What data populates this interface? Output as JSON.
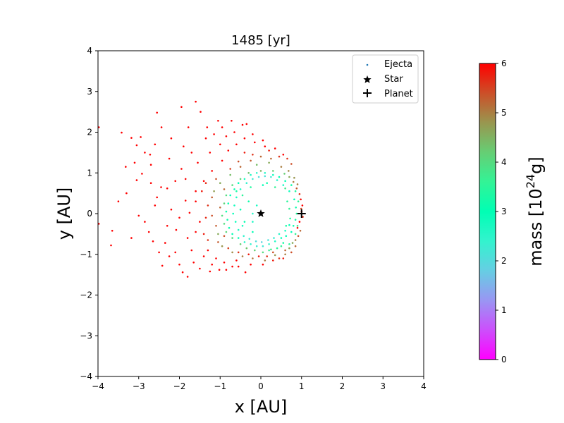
{
  "chart_data": {
    "type": "scatter",
    "title": "1485 [yr]",
    "xlabel": "x [AU]",
    "ylabel": "y [AU]",
    "xlim": [
      -4,
      4
    ],
    "ylim": [
      -4,
      4
    ],
    "xticks": [
      "−4",
      "−3",
      "−2",
      "−1",
      "0",
      "1",
      "2",
      "3",
      "4"
    ],
    "yticks": [
      "−4",
      "−3",
      "−2",
      "−1",
      "0",
      "1",
      "2",
      "3",
      "4"
    ],
    "grid": false,
    "legend_placement": "top-right",
    "legend": [
      {
        "label": "Ejecta",
        "marker": "dot",
        "color": "#1f77b4"
      },
      {
        "label": "Star",
        "marker": "star",
        "color": "#000000"
      },
      {
        "label": "Planet",
        "marker": "plus",
        "color": "#000000"
      }
    ],
    "colorbar": {
      "label_prefix": "mass [10",
      "label_exp": "24",
      "label_suffix": "g]",
      "range": [
        0,
        6
      ],
      "ticks": [
        "0",
        "1",
        "2",
        "3",
        "4",
        "5",
        "6"
      ],
      "colormap": "rainbow"
    },
    "star": {
      "x": 0,
      "y": 0
    },
    "planet": {
      "x": 1,
      "y": 0
    },
    "ejecta": [
      [
        -3.98,
        2.12,
        6.0
      ],
      [
        -3.42,
        1.99,
        6.0
      ],
      [
        -3.18,
        1.86,
        6.0
      ],
      [
        -3.05,
        1.68,
        6.0
      ],
      [
        -2.95,
        1.88,
        6.0
      ],
      [
        -2.72,
        1.45,
        6.0
      ],
      [
        -2.55,
        2.48,
        6.0
      ],
      [
        -2.44,
        2.12,
        6.0
      ],
      [
        -2.2,
        1.85,
        6.0
      ],
      [
        -1.95,
        2.62,
        6.0
      ],
      [
        -1.78,
        2.12,
        6.0
      ],
      [
        -1.6,
        2.75,
        6.0
      ],
      [
        -1.48,
        2.5,
        6.0
      ],
      [
        -1.32,
        2.12,
        6.0
      ],
      [
        -1.05,
        2.28,
        6.0
      ],
      [
        -0.95,
        2.12,
        6.0
      ],
      [
        -0.72,
        2.28,
        6.0
      ],
      [
        -0.45,
        2.18,
        6.0
      ],
      [
        -0.35,
        2.2,
        6.0
      ],
      [
        -3.32,
        1.15,
        6.0
      ],
      [
        -3.05,
        0.82,
        6.0
      ],
      [
        -2.92,
        0.98,
        6.0
      ],
      [
        -2.7,
        0.75,
        6.0
      ],
      [
        -2.3,
        0.62,
        6.0
      ],
      [
        -1.95,
        1.1,
        6.0
      ],
      [
        -3.98,
        -0.25,
        6.0
      ],
      [
        -3.65,
        -0.42,
        6.0
      ],
      [
        -3.68,
        -0.78,
        6.0
      ],
      [
        -3.18,
        -0.6,
        6.0
      ],
      [
        -2.85,
        -0.2,
        6.0
      ],
      [
        -2.65,
        -0.68,
        6.0
      ],
      [
        -2.42,
        -1.28,
        6.0
      ],
      [
        -2.35,
        -0.72,
        6.0
      ],
      [
        -2.08,
        -0.4,
        6.0
      ],
      [
        -1.92,
        -1.44,
        6.0
      ],
      [
        -1.8,
        -1.55,
        6.0
      ],
      [
        -1.5,
        -1.35,
        6.0
      ],
      [
        -1.25,
        -1.42,
        6.0
      ],
      [
        -1.02,
        -1.38,
        6.0
      ],
      [
        -0.7,
        -1.3,
        6.0
      ],
      [
        -0.38,
        -1.44,
        6.0
      ],
      [
        -3.5,
        0.3,
        6.0
      ],
      [
        -2.6,
        0.2,
        6.0
      ],
      [
        -2.2,
        0.1,
        6.0
      ],
      [
        -2.55,
        0.4,
        6.0
      ],
      [
        -1.85,
        0.32,
        6.0
      ],
      [
        -1.6,
        0.55,
        6.0
      ],
      [
        -1.4,
        0.8,
        6.0
      ],
      [
        -1.75,
        0.02,
        6.0
      ],
      [
        -1.5,
        -0.2,
        6.0
      ],
      [
        -2.1,
        -0.95,
        6.0
      ],
      [
        -1.7,
        -0.9,
        6.0
      ],
      [
        -1.3,
        -0.9,
        6.0
      ],
      [
        -1.1,
        -1.1,
        6.0
      ],
      [
        -0.9,
        -1.2,
        6.0
      ],
      [
        -0.6,
        -1.15,
        6.0
      ],
      [
        -1.25,
        1.5,
        6.0
      ],
      [
        -1.0,
        1.7,
        6.0
      ],
      [
        -0.8,
        1.55,
        6.0
      ],
      [
        -0.6,
        1.7,
        6.0
      ],
      [
        -0.4,
        1.85,
        6.0
      ],
      [
        -0.15,
        1.75,
        6.0
      ],
      [
        0.05,
        1.8,
        6.0
      ],
      [
        -1.55,
        1.25,
        6.0
      ],
      [
        -1.2,
        1.05,
        6.0
      ],
      [
        -0.95,
        1.3,
        6.0
      ],
      [
        -2.25,
        1.35,
        6.0
      ],
      [
        -2.7,
        1.2,
        6.0
      ],
      [
        -0.4,
        1.5,
        5.8
      ],
      [
        -0.2,
        1.45,
        5.6
      ],
      [
        0.2,
        1.55,
        5.8
      ],
      [
        0.45,
        1.4,
        5.6
      ],
      [
        0.65,
        1.35,
        5.6
      ],
      [
        0.75,
        1.22,
        5.4
      ],
      [
        -0.75,
        1.1,
        5.5
      ],
      [
        -0.55,
        1.28,
        5.4
      ],
      [
        -1.1,
        0.85,
        5.4
      ],
      [
        -0.9,
        0.6,
        5.2
      ],
      [
        -1.2,
        0.4,
        5.3
      ],
      [
        -1.0,
        0.15,
        5.2
      ],
      [
        -1.2,
        -0.05,
        5.4
      ],
      [
        -1.1,
        -0.3,
        5.3
      ],
      [
        -0.9,
        -0.55,
        5.4
      ],
      [
        -1.05,
        -0.7,
        5.3
      ],
      [
        -0.8,
        -0.85,
        5.5
      ],
      [
        -0.55,
        -0.95,
        5.6
      ],
      [
        -0.3,
        -1.0,
        5.8
      ],
      [
        -0.05,
        -1.05,
        5.8
      ],
      [
        0.15,
        -1.05,
        5.6
      ],
      [
        0.3,
        -0.95,
        5.4
      ],
      [
        0.6,
        -0.9,
        5.2
      ],
      [
        0.45,
        -1.1,
        5.6
      ],
      [
        0.9,
        -0.35,
        6.0
      ],
      [
        0.95,
        -0.2,
        6.0
      ],
      [
        1.0,
        0.05,
        6.0
      ],
      [
        1.02,
        0.2,
        6.0
      ],
      [
        0.98,
        0.35,
        5.9
      ],
      [
        0.95,
        0.48,
        5.6
      ],
      [
        0.88,
        0.62,
        5.3
      ],
      [
        0.8,
        0.78,
        5.0
      ],
      [
        0.7,
        0.9,
        4.6
      ],
      [
        0.58,
        0.98,
        4.2
      ],
      [
        0.92,
        -0.55,
        5.4
      ],
      [
        0.85,
        -0.65,
        5.0
      ],
      [
        0.78,
        -0.72,
        4.6
      ],
      [
        1.03,
        -0.08,
        5.7
      ],
      [
        0.99,
        0.12,
        5.4
      ],
      [
        0.97,
        -0.42,
        5.2
      ],
      [
        0.0,
        1.05,
        4.5
      ],
      [
        0.2,
        1.25,
        4.6
      ],
      [
        0.3,
        1.05,
        4.2
      ],
      [
        -0.1,
        1.2,
        4.4
      ],
      [
        -0.3,
        1.0,
        4.3
      ],
      [
        -0.5,
        0.85,
        4.2
      ],
      [
        -0.7,
        0.7,
        4.0
      ],
      [
        -0.85,
        0.45,
        4.0
      ],
      [
        -0.9,
        0.25,
        4.1
      ],
      [
        -0.95,
        -0.05,
        4.0
      ],
      [
        -0.9,
        -0.25,
        4.0
      ],
      [
        -0.85,
        -0.45,
        4.1
      ],
      [
        -0.7,
        -0.6,
        4.0
      ],
      [
        -0.5,
        -0.75,
        4.2
      ],
      [
        -0.35,
        -0.85,
        4.3
      ],
      [
        -0.15,
        -0.9,
        4.2
      ],
      [
        0.05,
        -0.95,
        4.0
      ],
      [
        0.25,
        -0.88,
        3.8
      ],
      [
        0.5,
        -0.8,
        3.6
      ],
      [
        0.7,
        -0.75,
        3.5
      ],
      [
        0.85,
        -0.5,
        3.6
      ],
      [
        0.9,
        -0.3,
        3.8
      ],
      [
        0.92,
        0.3,
        3.5
      ],
      [
        0.85,
        0.55,
        3.4
      ],
      [
        0.75,
        0.7,
        3.2
      ],
      [
        0.6,
        0.8,
        3.0
      ],
      [
        0.45,
        0.9,
        3.0
      ],
      [
        0.3,
        0.95,
        2.8
      ],
      [
        0.1,
        1.0,
        2.6
      ],
      [
        -0.1,
        1.0,
        2.5
      ],
      [
        -0.25,
        0.95,
        2.6
      ],
      [
        -0.4,
        0.85,
        2.8
      ],
      [
        -0.55,
        0.75,
        3.0
      ],
      [
        -0.65,
        0.6,
        3.1
      ],
      [
        -0.75,
        0.45,
        3.0
      ],
      [
        -0.8,
        0.25,
        3.1
      ],
      [
        -0.85,
        0.05,
        3.2
      ],
      [
        -0.82,
        -0.15,
        3.2
      ],
      [
        -0.78,
        -0.35,
        3.1
      ],
      [
        -0.7,
        -0.5,
        3.0
      ],
      [
        -0.55,
        -0.6,
        2.8
      ],
      [
        -0.4,
        -0.7,
        2.6
      ],
      [
        -0.25,
        -0.75,
        2.4
      ],
      [
        -0.1,
        -0.8,
        2.3
      ],
      [
        0.05,
        -0.8,
        2.2
      ],
      [
        0.2,
        -0.75,
        2.4
      ],
      [
        0.35,
        -0.68,
        2.6
      ],
      [
        0.5,
        -0.6,
        2.8
      ],
      [
        0.62,
        -0.55,
        2.9
      ],
      [
        0.75,
        -0.45,
        3.0
      ],
      [
        0.8,
        -0.3,
        3.1
      ],
      [
        0.85,
        -0.15,
        3.3
      ],
      [
        0.88,
        0.0,
        3.4
      ],
      [
        0.86,
        0.15,
        3.2
      ],
      [
        0.82,
        0.35,
        3.0
      ],
      [
        0.7,
        0.55,
        2.8
      ],
      [
        0.55,
        0.7,
        2.6
      ],
      [
        0.4,
        0.82,
        2.4
      ],
      [
        0.25,
        0.9,
        2.2
      ],
      [
        0.1,
        0.92,
        2.1
      ],
      [
        -0.05,
        0.9,
        2.0
      ],
      [
        -0.2,
        0.85,
        2.2
      ],
      [
        -0.35,
        0.75,
        2.4
      ],
      [
        -0.5,
        0.6,
        2.6
      ],
      [
        -0.6,
        0.4,
        2.7
      ],
      [
        -0.65,
        0.2,
        2.8
      ],
      [
        -0.68,
        0.0,
        2.9
      ],
      [
        -0.62,
        -0.2,
        2.8
      ],
      [
        -0.55,
        -0.4,
        2.6
      ],
      [
        -0.42,
        -0.55,
        2.4
      ],
      [
        -0.28,
        -0.62,
        2.2
      ],
      [
        -0.12,
        -0.68,
        2.0
      ],
      [
        0.02,
        -0.7,
        1.9
      ],
      [
        0.18,
        -0.65,
        2.1
      ],
      [
        0.32,
        -0.6,
        2.3
      ],
      [
        0.45,
        -0.5,
        2.5
      ],
      [
        0.6,
        -0.42,
        2.7
      ],
      [
        0.7,
        -0.28,
        2.9
      ],
      [
        -0.3,
        0.3,
        3.2
      ],
      [
        -0.5,
        0.1,
        3.0
      ],
      [
        -0.4,
        -0.2,
        3.1
      ],
      [
        -0.2,
        -0.45,
        3.0
      ],
      [
        -0.6,
        0.55,
        3.3
      ],
      [
        -0.45,
        0.45,
        3.5
      ],
      [
        -0.25,
        0.65,
        3.4
      ],
      [
        0.15,
        0.75,
        3.2
      ],
      [
        0.35,
        0.65,
        3.6
      ],
      [
        0.6,
        0.62,
        3.8
      ],
      [
        0.55,
        -0.72,
        3.3
      ],
      [
        0.4,
        -0.85,
        3.5
      ],
      [
        0.2,
        -0.9,
        3.7
      ],
      [
        0.05,
        0.7,
        2.9
      ],
      [
        -0.75,
        0.95,
        4.4
      ],
      [
        -1.0,
        0.75,
        4.6
      ],
      [
        -1.15,
        0.55,
        4.7
      ],
      [
        -1.05,
        -0.5,
        4.6
      ],
      [
        -0.95,
        -0.8,
        4.8
      ],
      [
        -0.7,
        -0.95,
        4.9
      ],
      [
        -0.45,
        -1.05,
        5.0
      ],
      [
        -0.2,
        -1.1,
        5.1
      ],
      [
        0.1,
        -1.15,
        5.0
      ],
      [
        0.35,
        -1.02,
        4.8
      ],
      [
        0.6,
        -1.0,
        5.0
      ],
      [
        0.7,
        -0.85,
        4.7
      ],
      [
        -1.3,
        0.2,
        5.6
      ],
      [
        -1.35,
        -0.1,
        5.7
      ],
      [
        -1.4,
        -0.5,
        5.8
      ],
      [
        -1.3,
        -0.65,
        5.6
      ],
      [
        -1.45,
        0.55,
        5.8
      ],
      [
        -1.35,
        0.75,
        5.7
      ],
      [
        -1.6,
        0.3,
        6.0
      ],
      [
        -1.6,
        -0.45,
        6.0
      ],
      [
        -1.8,
        -0.6,
        6.0
      ],
      [
        -2.0,
        -0.1,
        6.0
      ],
      [
        -2.3,
        -0.3,
        6.0
      ],
      [
        -2.45,
        0.65,
        6.0
      ],
      [
        -2.1,
        0.8,
        6.0
      ],
      [
        -1.85,
        0.85,
        6.0
      ],
      [
        -1.7,
        1.5,
        6.0
      ],
      [
        -1.9,
        1.65,
        6.0
      ],
      [
        -1.35,
        1.85,
        6.0
      ],
      [
        -1.15,
        1.95,
        6.0
      ],
      [
        -0.85,
        1.9,
        6.0
      ],
      [
        -0.65,
        2.0,
        6.0
      ],
      [
        -0.2,
        1.95,
        6.0
      ],
      [
        0.1,
        1.65,
        6.0
      ],
      [
        0.35,
        1.6,
        6.0
      ],
      [
        0.55,
        1.45,
        6.0
      ],
      [
        -2.6,
        1.7,
        6.0
      ],
      [
        -2.85,
        1.5,
        6.0
      ],
      [
        -3.1,
        1.25,
        6.0
      ],
      [
        -3.3,
        0.5,
        6.0
      ],
      [
        -3.0,
        -0.05,
        6.0
      ],
      [
        -2.75,
        -0.45,
        6.0
      ],
      [
        -2.5,
        -0.95,
        6.0
      ],
      [
        -2.25,
        -1.05,
        6.0
      ],
      [
        -2.0,
        -1.25,
        6.0
      ],
      [
        -1.65,
        -1.2,
        6.0
      ],
      [
        -1.4,
        -1.05,
        6.0
      ],
      [
        -1.2,
        -1.25,
        6.0
      ],
      [
        -0.85,
        -1.38,
        6.0
      ],
      [
        -0.55,
        -1.3,
        6.0
      ],
      [
        -0.25,
        -1.25,
        6.0
      ],
      [
        0.05,
        -1.25,
        6.0
      ],
      [
        0.3,
        -1.15,
        5.8
      ],
      [
        0.55,
        -1.1,
        5.8
      ],
      [
        0.75,
        -0.95,
        5.4
      ],
      [
        0.85,
        -0.8,
        5.2
      ],
      [
        0.9,
        0.72,
        5.0
      ],
      [
        0.82,
        0.88,
        4.8
      ],
      [
        0.68,
        1.05,
        4.9
      ],
      [
        0.5,
        1.15,
        5.0
      ],
      [
        0.25,
        1.35,
        5.2
      ],
      [
        0.0,
        1.4,
        5.2
      ],
      [
        -0.25,
        1.3,
        5.3
      ],
      [
        -0.5,
        1.15,
        5.2
      ],
      [
        -0.2,
        0.0,
        2.5
      ],
      [
        -0.1,
        0.2,
        2.7
      ],
      [
        -0.2,
        -0.2,
        2.6
      ],
      [
        -0.45,
        -0.3,
        2.8
      ],
      [
        0.65,
        0.3,
        3.5
      ],
      [
        0.7,
        0.12,
        3.6
      ],
      [
        0.72,
        -0.12,
        3.5
      ],
      [
        0.62,
        -0.3,
        3.3
      ]
    ]
  }
}
